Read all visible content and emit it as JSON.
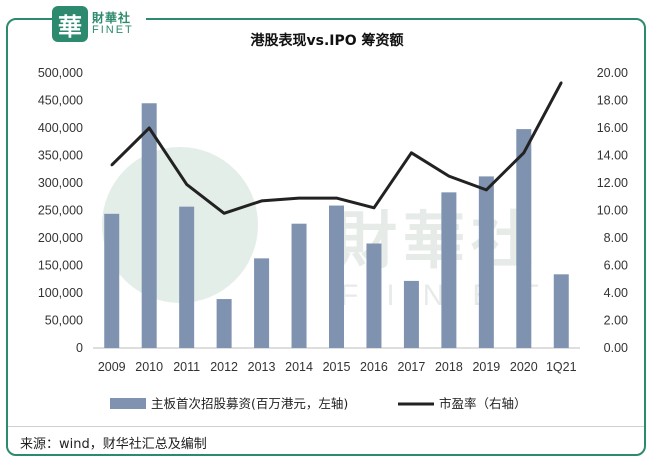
{
  "logo": {
    "mark": "華",
    "cn": "財華社",
    "en": "FINET"
  },
  "watermark": {
    "cn": "財華社",
    "en": "FINET"
  },
  "source": "来源：wind，财华社汇总及编制",
  "colors": {
    "bar": "#7f93b0",
    "line": "#222222",
    "frame": "#2e8a6e"
  },
  "chart_data": {
    "type": "bar",
    "title": "港股表现vs.IPO 筹资额",
    "categories": [
      "2009",
      "2010",
      "2011",
      "2012",
      "2013",
      "2014",
      "2015",
      "2016",
      "2017",
      "2018",
      "2019",
      "2020",
      "1Q21"
    ],
    "series": [
      {
        "name": "主板首次招股募资(百万港元，左轴)",
        "type": "bar",
        "axis": "left",
        "values": [
          244000,
          445000,
          257000,
          89000,
          163000,
          226000,
          259000,
          190000,
          122000,
          283000,
          312000,
          398000,
          134000
        ]
      },
      {
        "name": "市盈率（右轴）",
        "type": "line",
        "axis": "right",
        "values": [
          13.3,
          16.0,
          11.9,
          9.8,
          10.7,
          10.9,
          10.9,
          10.2,
          14.2,
          12.5,
          11.5,
          14.2,
          19.3
        ]
      }
    ],
    "left_axis": {
      "min": 0,
      "max": 500000,
      "step": 50000,
      "tick_labels": [
        "0",
        "50,000",
        "100,000",
        "150,000",
        "200,000",
        "250,000",
        "300,000",
        "350,000",
        "400,000",
        "450,000",
        "500,000"
      ]
    },
    "right_axis": {
      "min": 0,
      "max": 20,
      "step": 2,
      "tick_labels": [
        "0.00",
        "2.00",
        "4.00",
        "6.00",
        "8.00",
        "10.00",
        "12.00",
        "14.00",
        "16.00",
        "18.00",
        "20.00"
      ]
    },
    "grid": false,
    "legend": "bottom"
  }
}
